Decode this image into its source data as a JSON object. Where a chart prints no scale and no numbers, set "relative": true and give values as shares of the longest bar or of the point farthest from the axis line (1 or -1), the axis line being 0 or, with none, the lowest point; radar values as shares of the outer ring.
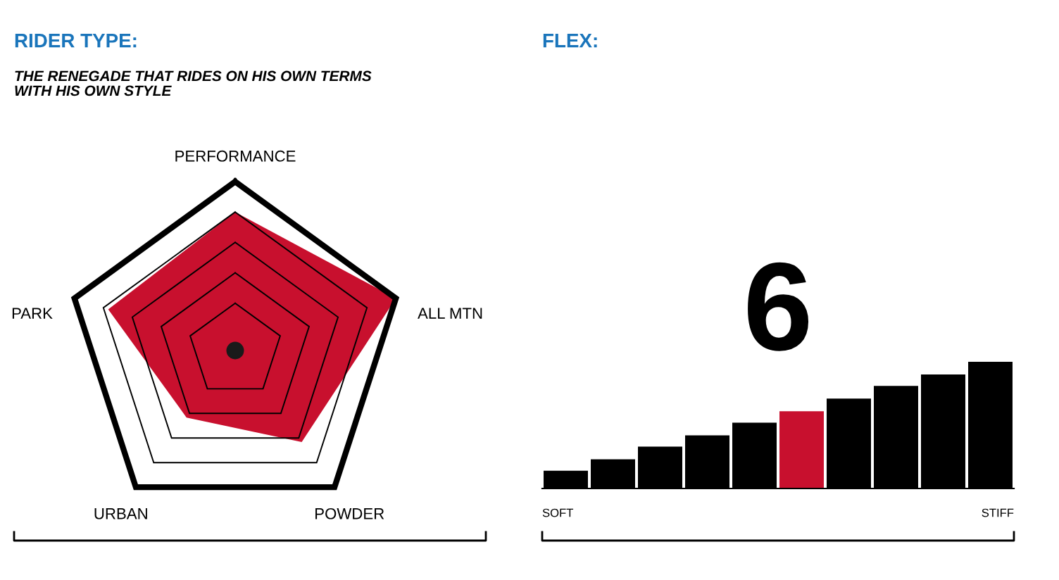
{
  "chart_data": [
    {
      "type": "radar",
      "title": "RIDER TYPE:",
      "subtitle": "THE RENEGADE THAT RIDES ON HIS OWN TERMS\nWITH HIS OWN STYLE",
      "categories": [
        "PERFORMANCE",
        "ALL MTN",
        "POWDER",
        "URBAN",
        "PARK"
      ],
      "relative": true,
      "grid": true,
      "series": [
        {
          "color": "#c8102e",
          "values": [
            0.82,
            1.0,
            0.67,
            0.49,
            0.79
          ]
        }
      ]
    },
    {
      "type": "bar",
      "title": "FLEX:",
      "categories": [
        null,
        null,
        null,
        null,
        null,
        null,
        null,
        null,
        null,
        null
      ],
      "relative": true,
      "values": [
        0.14,
        0.23,
        0.33,
        0.42,
        0.52,
        0.61,
        0.71,
        0.81,
        0.9,
        1.0
      ],
      "colors": [
        "#000000",
        "#000000",
        "#000000",
        "#000000",
        "#000000",
        "#c8102e",
        "#000000",
        "#000000",
        "#000000",
        "#000000"
      ],
      "annotations": [
        "6",
        "SOFT",
        "STIFF"
      ]
    }
  ]
}
